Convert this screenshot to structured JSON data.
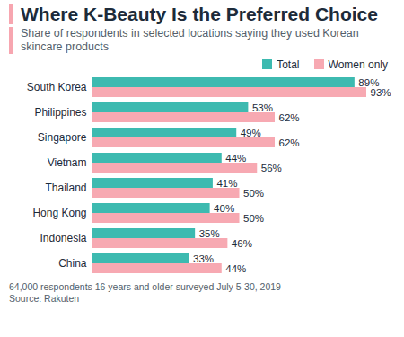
{
  "chart_data": {
    "type": "bar",
    "orientation": "horizontal",
    "title": "Where K-Beauty Is the Preferred Choice",
    "subtitle": "Share of respondents in selected locations saying they used Korean skincare products",
    "caption": [
      "64,000 respondents 16 years and older surveyed July 5-30, 2019",
      "Source: Rakuten"
    ],
    "categories": [
      "South Korea",
      "Philippines",
      "Singapore",
      "Vietnam",
      "Thailand",
      "Hong Kong",
      "Indonesia",
      "China"
    ],
    "series": [
      {
        "name": "Total",
        "color": "#3dbab0",
        "values": [
          89,
          53,
          49,
          44,
          41,
          40,
          35,
          33
        ],
        "value_labels": [
          "89%",
          "53%",
          "49%",
          "44%",
          "41%",
          "40%",
          "35%",
          "33%"
        ]
      },
      {
        "name": "Women only",
        "color": "#f7a9b2",
        "values": [
          93,
          62,
          62,
          56,
          50,
          50,
          46,
          44
        ],
        "value_labels": [
          "93%",
          "62%",
          "62%",
          "56%",
          "50%",
          "50%",
          "46%",
          "44%"
        ]
      }
    ],
    "data_labels": true,
    "tick_labels": "y",
    "legend": "top-right"
  }
}
